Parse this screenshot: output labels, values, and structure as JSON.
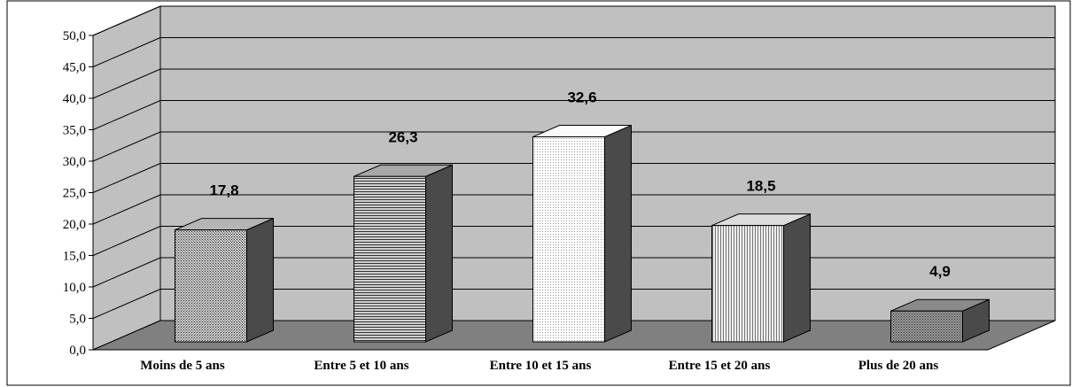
{
  "chart_data": {
    "type": "bar",
    "categories": [
      "Moins de 5 ans",
      "Entre 5 et 10 ans",
      "Entre 10 et 15 ans",
      "Entre 15 et 20 ans",
      "Plus de 20 ans"
    ],
    "values": [
      17.8,
      26.3,
      32.6,
      18.5,
      4.9
    ],
    "value_labels": [
      "17,8",
      "26,3",
      "32,6",
      "18,5",
      "4,9"
    ],
    "y_ticks": [
      "0,0",
      "5,0",
      "10,0",
      "15,0",
      "20,0",
      "25,0",
      "30,0",
      "35,0",
      "40,0",
      "45,0",
      "50,0"
    ],
    "ylim": [
      0,
      50
    ],
    "title": "",
    "xlabel": "",
    "ylabel": "",
    "grid": true,
    "style": "3d",
    "colors": {
      "wall": "#c0c0c0",
      "floor": "#808080",
      "grid": "#000000",
      "bar_fills": [
        "#b4b4b4",
        "#a8a8a8",
        "#fbfbfb",
        "#dcdcdc",
        "#8a8a8a"
      ],
      "bar_patterns": [
        "dots",
        "hlines",
        "dots-light",
        "vlines",
        "dots"
      ]
    }
  }
}
